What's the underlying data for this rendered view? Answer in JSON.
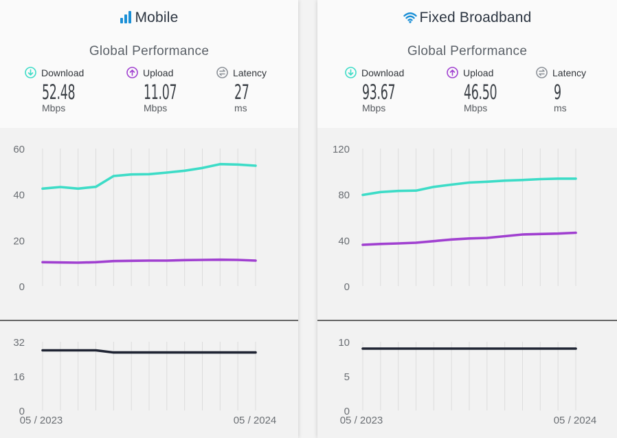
{
  "panels": [
    {
      "id": "mobile",
      "title": "Mobile",
      "icon": "signal-bars-icon",
      "subtitle": "Global Performance",
      "metrics": [
        {
          "label": "Download",
          "icon": "arrow-down-circle-icon",
          "value": "52.48",
          "unit": "Mbps",
          "color": "#3ddcc7"
        },
        {
          "label": "Upload",
          "icon": "arrow-up-circle-icon",
          "value": "11.07",
          "unit": "Mbps",
          "color": "#a040d0"
        },
        {
          "label": "Latency",
          "icon": "swap-arrows-circle-icon",
          "value": "27",
          "unit": "ms",
          "color": "#8a8f96"
        }
      ]
    },
    {
      "id": "fixed",
      "title": "Fixed Broadband",
      "icon": "wifi-icon",
      "subtitle": "Global Performance",
      "metrics": [
        {
          "label": "Download",
          "icon": "arrow-down-circle-icon",
          "value": "93.67",
          "unit": "Mbps",
          "color": "#3ddcc7"
        },
        {
          "label": "Upload",
          "icon": "arrow-up-circle-icon",
          "value": "46.50",
          "unit": "Mbps",
          "color": "#a040d0"
        },
        {
          "label": "Latency",
          "icon": "swap-arrows-circle-icon",
          "value": "9",
          "unit": "ms",
          "color": "#8a8f96"
        }
      ]
    }
  ],
  "colors": {
    "download": "#3ddcc7",
    "upload": "#a040d0",
    "latency": "#1f2433",
    "accent": "#1a8fd6"
  },
  "chart_data": [
    {
      "type": "line",
      "x_labels": [
        "05 / 2023",
        "05 / 2024"
      ],
      "x_count": 13,
      "speed": {
        "ylim": [
          0,
          60
        ],
        "yticks": [
          0,
          20,
          40,
          60
        ],
        "series": [
          {
            "name": "Download",
            "values": [
              42.5,
              43.2,
              42.5,
              43.3,
              48,
              48.7,
              48.8,
              49.5,
              50.3,
              51.5,
              53.2,
              53,
              52.5
            ]
          },
          {
            "name": "Upload",
            "values": [
              10.4,
              10.3,
              10.2,
              10.4,
              10.9,
              11,
              11.1,
              11.1,
              11.3,
              11.4,
              11.5,
              11.4,
              11.1
            ]
          }
        ]
      },
      "latency": {
        "ylim": [
          0,
          32
        ],
        "yticks": [
          0,
          16,
          32
        ],
        "series": [
          {
            "name": "Latency",
            "values": [
              28,
              28,
              28,
              28,
              27,
              27,
              27,
              27,
              27,
              27,
              27,
              27,
              27
            ]
          }
        ]
      }
    },
    {
      "type": "line",
      "x_labels": [
        "05 / 2023",
        "05 / 2024"
      ],
      "x_count": 13,
      "speed": {
        "ylim": [
          0,
          120
        ],
        "yticks": [
          0,
          40,
          80,
          120
        ],
        "series": [
          {
            "name": "Download",
            "values": [
              79.5,
              82,
              83,
              83.3,
              86.5,
              88.5,
              90.3,
              91,
              92,
              92.5,
              93.3,
              93.7,
              93.7
            ]
          },
          {
            "name": "Upload",
            "values": [
              36,
              36.7,
              37.2,
              37.8,
              39.2,
              40.6,
              41.5,
              42,
              43.5,
              45,
              45.4,
              45.8,
              46.5
            ]
          }
        ]
      },
      "latency": {
        "ylim": [
          0,
          10
        ],
        "yticks": [
          0,
          5,
          10
        ],
        "series": [
          {
            "name": "Latency",
            "values": [
              9,
              9,
              9,
              9,
              9,
              9,
              9,
              9,
              9,
              9,
              9,
              9,
              9
            ]
          }
        ]
      }
    }
  ]
}
